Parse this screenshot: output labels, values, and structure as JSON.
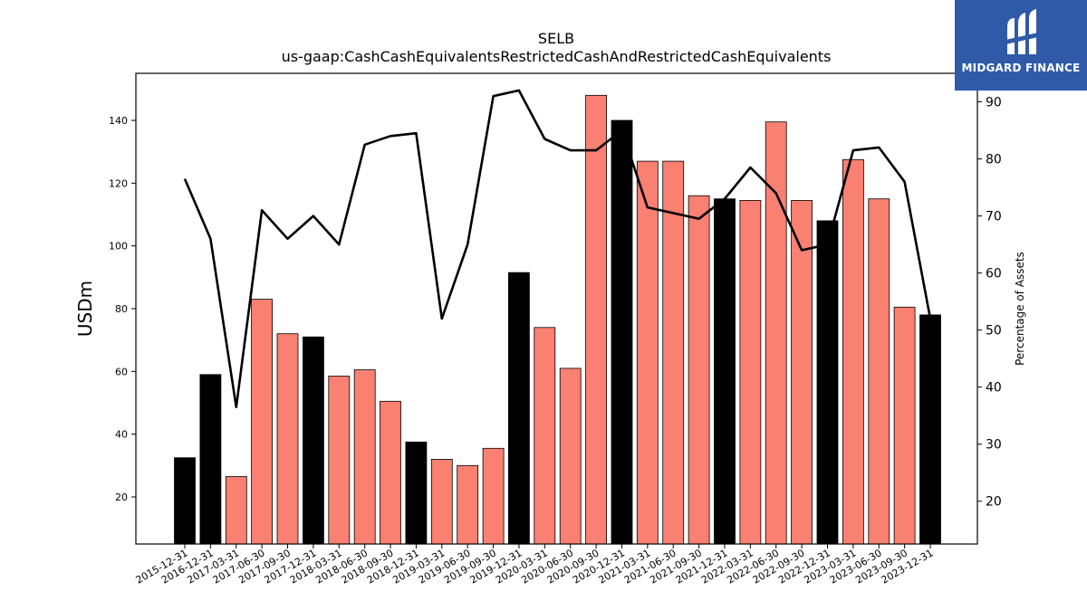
{
  "chart_data": {
    "type": "bar",
    "title": "SELB",
    "subtitle": "us-gaap:CashCashEquivalentsRestrictedCashAndRestrictedCashEquivalents",
    "ylabel": "USDm",
    "y2label": "Percentage of Assets",
    "ylim": [
      5,
      155
    ],
    "y2lim": [
      12.5,
      95
    ],
    "yticks": [
      20,
      40,
      60,
      80,
      100,
      120,
      140
    ],
    "y2ticks": [
      20,
      30,
      40,
      50,
      60,
      70,
      80,
      90
    ],
    "colors": {
      "annual": "#000000",
      "quarterly": "#fa8072",
      "line": "#000000"
    },
    "categories": [
      "2015-12-31",
      "2016-12-31",
      "2017-03-31",
      "2017-06-30",
      "2017-09-30",
      "2017-12-31",
      "2018-03-31",
      "2018-06-30",
      "2018-09-30",
      "2018-12-31",
      "2019-03-31",
      "2019-06-30",
      "2019-09-30",
      "2019-12-31",
      "2020-03-31",
      "2020-06-30",
      "2020-09-30",
      "2020-12-31",
      "2021-03-31",
      "2021-06-30",
      "2021-09-30",
      "2021-12-31",
      "2022-03-31",
      "2022-06-30",
      "2022-09-30",
      "2022-12-31",
      "2023-03-31",
      "2023-06-30",
      "2023-09-30",
      "2023-12-31"
    ],
    "series": [
      {
        "values": [
          32.5,
          59,
          26.5,
          83,
          72,
          71,
          58.5,
          60.5,
          50.5,
          37.5,
          32,
          30,
          35.5,
          91.5,
          74,
          61,
          148,
          140,
          127,
          127,
          116,
          115,
          114.5,
          139.5,
          114.5,
          108,
          127.5,
          115,
          80.5,
          78
        ],
        "annual": [
          true,
          true,
          false,
          false,
          false,
          true,
          false,
          false,
          false,
          true,
          false,
          false,
          false,
          true,
          false,
          false,
          false,
          true,
          false,
          false,
          false,
          true,
          false,
          false,
          false,
          true,
          false,
          false,
          false,
          true
        ]
      },
      {
        "axis": "right",
        "type": "line",
        "values": [
          76.5,
          66,
          36.5,
          71,
          66,
          70,
          65,
          82.5,
          84,
          84.5,
          52,
          65,
          91,
          92,
          83.5,
          81.5,
          81.5,
          85,
          71.5,
          70.5,
          69.5,
          73,
          78.5,
          74,
          64,
          65,
          81.5,
          82,
          76,
          52
        ]
      }
    ]
  },
  "logo": {
    "name": "MIDGARD FINANCE"
  }
}
